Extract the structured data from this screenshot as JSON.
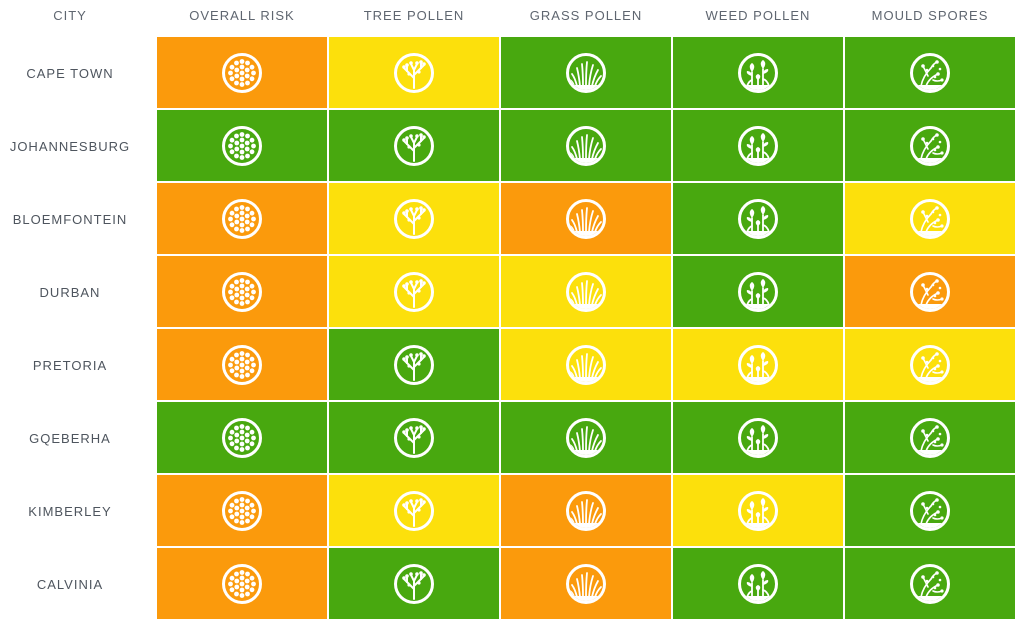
{
  "colors": {
    "low": "#48a80f",
    "moderate": "#fce00c",
    "high": "#fb9a0c"
  },
  "headers": [
    "CITY",
    "OVERALL RISK",
    "TREE POLLEN",
    "GRASS POLLEN",
    "WEED POLLEN",
    "MOULD SPORES"
  ],
  "icons": [
    "pollen-grain-icon",
    "tree-icon",
    "grass-icon",
    "weed-flower-icon",
    "mould-spore-icon"
  ],
  "rows": [
    {
      "city": "CAPE TOWN",
      "levels": [
        "high",
        "moderate",
        "low",
        "low",
        "low"
      ]
    },
    {
      "city": "JOHANNESBURG",
      "levels": [
        "low",
        "low",
        "low",
        "low",
        "low"
      ]
    },
    {
      "city": "BLOEMFONTEIN",
      "levels": [
        "high",
        "moderate",
        "high",
        "low",
        "moderate"
      ]
    },
    {
      "city": "DURBAN",
      "levels": [
        "high",
        "moderate",
        "moderate",
        "low",
        "high"
      ]
    },
    {
      "city": "PRETORIA",
      "levels": [
        "high",
        "low",
        "moderate",
        "moderate",
        "moderate"
      ]
    },
    {
      "city": "GQEBERHA",
      "levels": [
        "low",
        "low",
        "low",
        "low",
        "low"
      ]
    },
    {
      "city": "KIMBERLEY",
      "levels": [
        "high",
        "moderate",
        "high",
        "moderate",
        "low"
      ]
    },
    {
      "city": "CALVINIA",
      "levels": [
        "high",
        "low",
        "high",
        "low",
        "low"
      ]
    }
  ]
}
